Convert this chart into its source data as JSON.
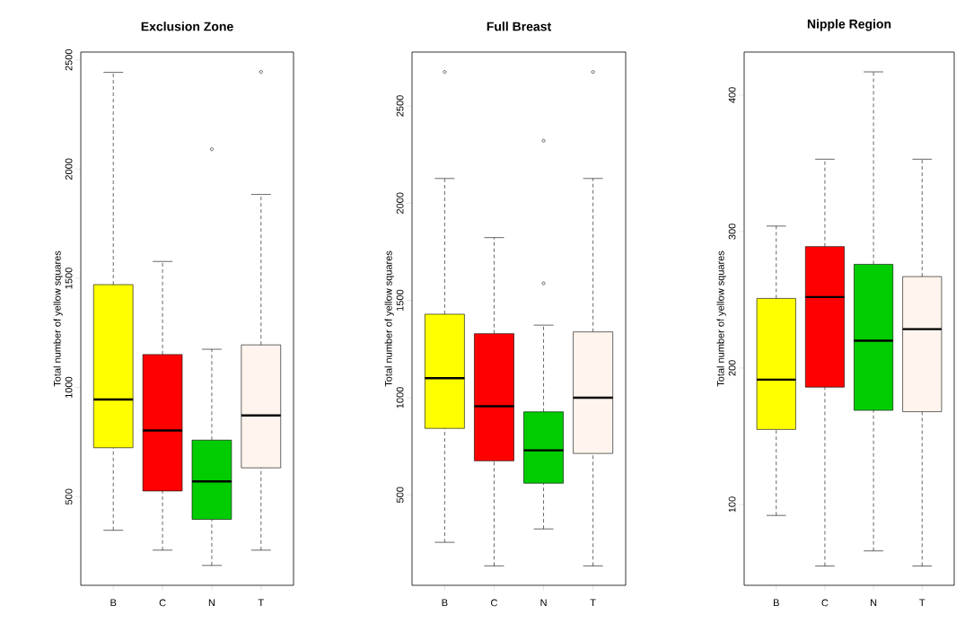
{
  "chart_data": [
    {
      "type": "box",
      "title": "Exclusion Zone",
      "ylabel": "Total number of yellow squares",
      "categories": [
        "B",
        "C",
        "N",
        "T"
      ],
      "colors": [
        "#ffff00",
        "#ff0000",
        "#00cc00",
        "#fff5ee"
      ],
      "ylim": [
        94,
        2536
      ],
      "yticks": [
        500,
        1000,
        1500,
        2000,
        2500
      ],
      "boxes": [
        {
          "low": 346,
          "q1": 724,
          "median": 945,
          "q3": 1471,
          "high": 2443
        },
        {
          "low": 255,
          "q1": 526,
          "median": 803,
          "q3": 1151,
          "high": 1577
        },
        {
          "low": 185,
          "q1": 396,
          "median": 570,
          "q3": 759,
          "high": 1175,
          "outliers": [
            2091
          ]
        },
        {
          "low": 255,
          "q1": 632,
          "median": 872,
          "q3": 1195,
          "high": 1884,
          "outliers": [
            2445
          ]
        }
      ]
    },
    {
      "type": "box",
      "title": "Full Breast",
      "ylabel": "Total number of yellow squares",
      "categories": [
        "B",
        "C",
        "N",
        "T"
      ],
      "colors": [
        "#ffff00",
        "#ff0000",
        "#00cc00",
        "#fff5ee"
      ],
      "ylim": [
        35,
        2777
      ],
      "yticks": [
        500,
        1000,
        1500,
        2000,
        2500
      ],
      "boxes": [
        {
          "low": 256,
          "q1": 842,
          "median": 1100,
          "q3": 1429,
          "high": 2127,
          "outliers": [
            2675
          ]
        },
        {
          "low": 135,
          "q1": 675,
          "median": 956,
          "q3": 1329,
          "high": 1823
        },
        {
          "low": 325,
          "q1": 560,
          "median": 729,
          "q3": 927,
          "high": 1373,
          "outliers": [
            1588,
            2321
          ]
        },
        {
          "low": 135,
          "q1": 713,
          "median": 1000,
          "q3": 1338,
          "high": 2127,
          "outliers": [
            2675
          ]
        }
      ]
    },
    {
      "type": "box",
      "title": "Nipple Region",
      "ylabel": "Total number of yellow squares",
      "categories": [
        "B",
        "C",
        "N",
        "T"
      ],
      "colors": [
        "#ffff00",
        "#ff0000",
        "#00cc00",
        "#fff5ee"
      ],
      "ylim": [
        40.8,
        431.5
      ],
      "yticks": [
        100,
        200,
        300,
        400
      ],
      "boxes": [
        {
          "low": 92,
          "q1": 155,
          "median": 191.5,
          "q3": 251,
          "high": 304
        },
        {
          "low": 55,
          "q1": 186,
          "median": 252,
          "q3": 289,
          "high": 353
        },
        {
          "low": 66,
          "q1": 169,
          "median": 220,
          "q3": 276,
          "high": 417
        },
        {
          "low": 55,
          "q1": 168,
          "median": 228.5,
          "q3": 267,
          "high": 353
        }
      ]
    }
  ]
}
